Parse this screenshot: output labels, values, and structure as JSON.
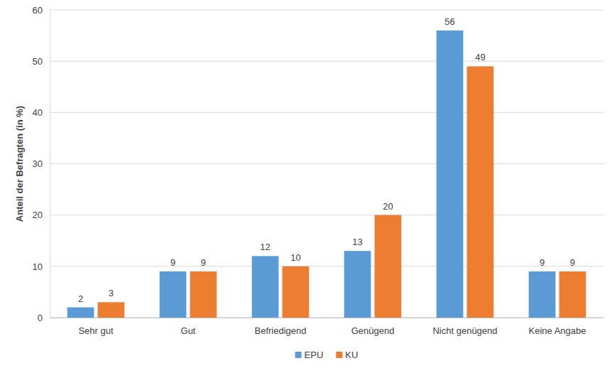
{
  "chart_data": {
    "type": "bar",
    "y_label": "Anteil der Befragten (in %)",
    "categories": [
      "Sehr gut",
      "Gut",
      "Befriedigend",
      "Genügend",
      "Nicht genügend",
      "Keine Angabe"
    ],
    "series": [
      {
        "name": "EPU",
        "color": "#5b9bd5",
        "values": [
          2,
          9,
          12,
          13,
          56,
          9
        ]
      },
      {
        "name": "KU",
        "color": "#ed7d31",
        "values": [
          3,
          9,
          10,
          20,
          49,
          9
        ]
      }
    ],
    "ylim": [
      0,
      60
    ],
    "yticks": [
      0,
      10,
      20,
      30,
      40,
      50,
      60
    ],
    "grid": true,
    "legend": "bottom",
    "data_labels": true
  }
}
